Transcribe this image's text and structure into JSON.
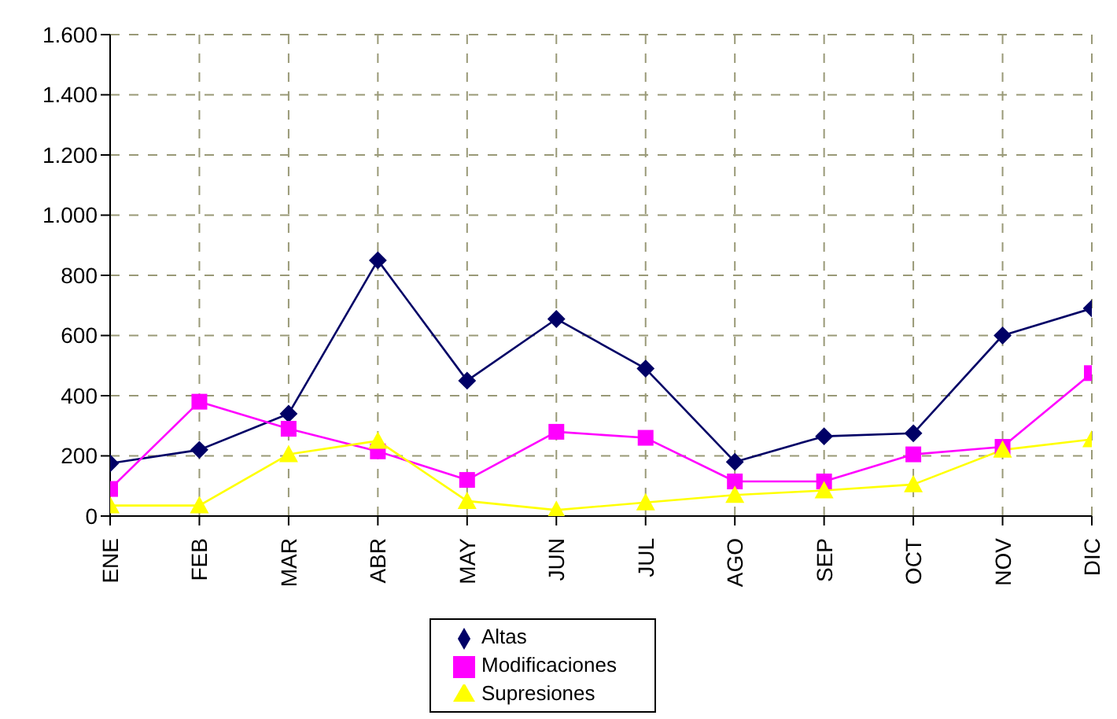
{
  "chart_data": {
    "type": "line",
    "categories": [
      "ENE",
      "FEB",
      "MAR",
      "ABR",
      "MAY",
      "JUN",
      "JUL",
      "AGO",
      "SEP",
      "OCT",
      "NOV",
      "DIC"
    ],
    "series": [
      {
        "name": "Altas",
        "color": "#000066",
        "marker": "diamond",
        "values": [
          175,
          220,
          340,
          850,
          450,
          655,
          490,
          180,
          265,
          275,
          600,
          690
        ]
      },
      {
        "name": "Modificaciones",
        "color": "#ff00ff",
        "marker": "square",
        "values": [
          90,
          380,
          290,
          215,
          120,
          280,
          260,
          115,
          115,
          205,
          230,
          475
        ]
      },
      {
        "name": "Supresiones",
        "color": "#ffff00",
        "marker": "triangle",
        "values": [
          35,
          35,
          205,
          250,
          50,
          20,
          45,
          70,
          85,
          105,
          220,
          255
        ]
      }
    ],
    "ylim": [
      0,
      1600
    ],
    "yticks": [
      0,
      200,
      400,
      600,
      800,
      {
        "value": 1000,
        "label": "1.000"
      },
      {
        "value": 1200,
        "label": "1.200"
      },
      {
        "value": 1400,
        "label": "1.400"
      },
      {
        "value": 1600,
        "label": "1.600"
      }
    ],
    "grid": true,
    "legend": "bottom",
    "line_style": "solid"
  }
}
